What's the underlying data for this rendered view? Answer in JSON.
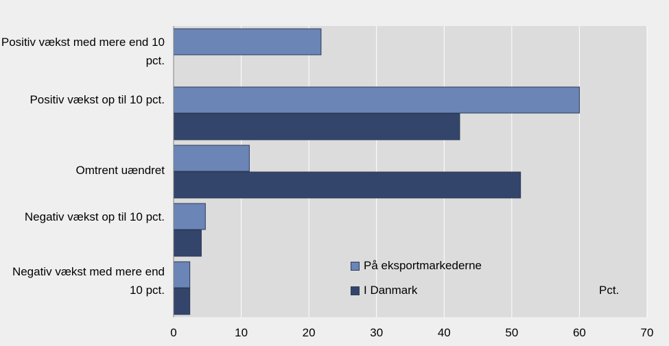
{
  "chart_data": {
    "type": "bar",
    "orientation": "horizontal",
    "categories": [
      "Positiv vækst med mere end 10 pct.",
      "Positiv vækst op til 10 pct.",
      "Omtrent uændret",
      "Negativ vækst op til 10 pct.",
      "Negativ vækst med mere end 10 pct."
    ],
    "series": [
      {
        "name": "På eksportmarkederne",
        "color": "#6a85b6",
        "values": [
          21.8,
          60.0,
          11.2,
          4.7,
          2.4
        ]
      },
      {
        "name": "I Danmark",
        "color": "#33456b",
        "values": [
          0,
          42.3,
          51.3,
          4.1,
          2.4
        ]
      }
    ],
    "xlim": [
      0,
      70
    ],
    "xticks": [
      "0",
      "10",
      "20",
      "30",
      "40",
      "50",
      "60",
      "70"
    ],
    "unit": "Pct.",
    "grid": true,
    "legend_position": "bottom-center"
  },
  "colors": {
    "background": "#efefef",
    "plot_area": "#dcdcdc",
    "gridline": "#ffffff"
  }
}
